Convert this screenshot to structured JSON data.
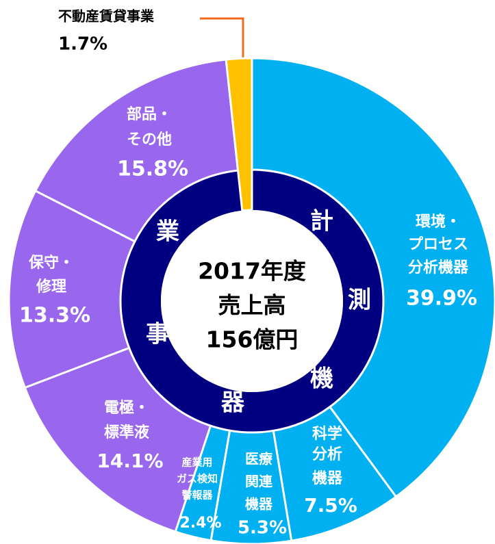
{
  "chart_data": {
    "type": "donut",
    "categories": [
      [
        "環境・",
        "プロセス",
        "分析機器"
      ],
      [
        "科学",
        "分析",
        "機器"
      ],
      [
        "医療",
        "関連",
        "機器"
      ],
      [
        "産業用",
        "ガス検知",
        "警報器"
      ],
      [
        "電極・",
        "標準液"
      ],
      [
        "保守・",
        "修理"
      ],
      [
        "部品・",
        "その他"
      ],
      [
        "不動産賃貸事業"
      ]
    ],
    "values": [
      39.9,
      7.5,
      5.3,
      2.4,
      14.1,
      13.3,
      15.8,
      1.7
    ],
    "value_labels": [
      "39.9%",
      "7.5%",
      "5.3%",
      "2.4%",
      "14.1%",
      "13.3%",
      "15.8%",
      "1.7%"
    ],
    "colors": [
      "#00b0f0",
      "#00b0f0",
      "#00b0f0",
      "#00b0f0",
      "#9966ee",
      "#9966ee",
      "#9966ee",
      "#ffc000"
    ],
    "groups": [
      {
        "name": [
          "計",
          "測",
          "機",
          "器"
        ],
        "color": "#000080"
      },
      {
        "name": [
          "事",
          "業"
        ],
        "color": "#000080"
      }
    ],
    "center_text": [
      "2017年度",
      "売上高",
      "156億円"
    ]
  }
}
